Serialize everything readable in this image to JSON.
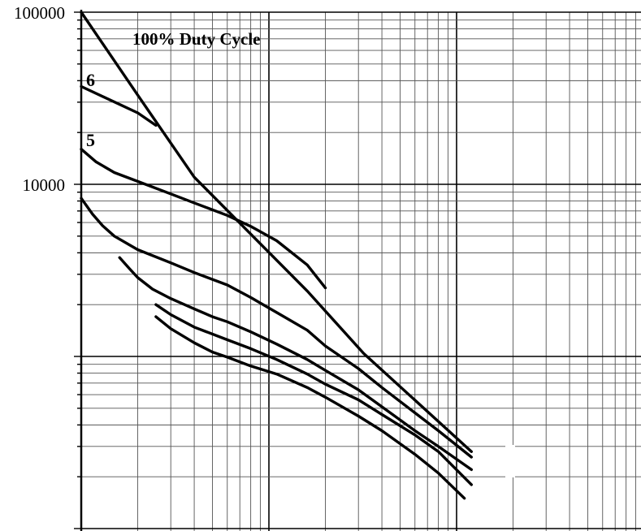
{
  "chart_data": {
    "type": "line",
    "title": "",
    "xlabel": "",
    "ylabel": "",
    "x_scale": "log",
    "y_scale": "log",
    "xlim": [
      1,
      1000
    ],
    "ylim": [
      100,
      100000
    ],
    "grid": true,
    "y_tick_labels": [
      {
        "value": 100000,
        "label": "100000"
      },
      {
        "value": 10000,
        "label": "10000"
      }
    ],
    "series_labels": [
      "6",
      "5"
    ],
    "annotations": [
      {
        "text": "100% Duty Cycle",
        "x": 2.8,
        "y": 80000
      }
    ],
    "line_color": "#000000",
    "series": [
      {
        "id": "duty-100",
        "points": [
          [
            1.0,
            100000
          ],
          [
            2.0,
            33000
          ],
          [
            4.0,
            11000
          ],
          [
            16.0,
            2400
          ],
          [
            32.0,
            1040
          ],
          [
            120.0,
            280
          ]
        ]
      },
      {
        "id": "curve-6",
        "points": [
          [
            1.0,
            37000
          ],
          [
            2.0,
            26000
          ],
          [
            2.5,
            22000
          ]
        ]
      },
      {
        "id": "curve-5",
        "points": [
          [
            1.0,
            16000
          ],
          [
            1.2,
            13500
          ],
          [
            1.5,
            11700
          ],
          [
            2.0,
            10400
          ],
          [
            3.0,
            8800
          ],
          [
            4.0,
            7800
          ],
          [
            6.0,
            6600
          ],
          [
            8.0,
            5700
          ],
          [
            11.0,
            4700
          ],
          [
            16.0,
            3400
          ],
          [
            20.0,
            2500
          ]
        ]
      },
      {
        "id": "curve-4",
        "points": [
          [
            1.0,
            8300
          ],
          [
            1.15,
            6700
          ],
          [
            1.3,
            5750
          ],
          [
            1.5,
            5000
          ],
          [
            2.0,
            4170
          ],
          [
            3.0,
            3500
          ],
          [
            4.0,
            3070
          ],
          [
            6.0,
            2600
          ],
          [
            8.0,
            2200
          ],
          [
            11.0,
            1800
          ],
          [
            16.0,
            1420
          ],
          [
            20.0,
            1150
          ],
          [
            30.0,
            850
          ],
          [
            40.0,
            660
          ],
          [
            60.0,
            470
          ],
          [
            80.0,
            370
          ],
          [
            120.0,
            260
          ]
        ]
      },
      {
        "id": "curve-3",
        "points": [
          [
            1.6,
            3750
          ],
          [
            1.8,
            3250
          ],
          [
            2.0,
            2870
          ],
          [
            2.4,
            2460
          ],
          [
            3.0,
            2170
          ],
          [
            4.0,
            1890
          ],
          [
            5.0,
            1700
          ],
          [
            6.0,
            1590
          ],
          [
            8.0,
            1390
          ],
          [
            11.0,
            1180
          ],
          [
            16.0,
            960
          ],
          [
            20.0,
            830
          ],
          [
            30.0,
            640
          ],
          [
            40.0,
            510
          ],
          [
            60.0,
            370
          ],
          [
            80.0,
            300
          ],
          [
            120.0,
            220
          ]
        ]
      },
      {
        "id": "curve-2",
        "points": [
          [
            2.5,
            2000
          ],
          [
            3.0,
            1750
          ],
          [
            4.0,
            1480
          ],
          [
            6.0,
            1250
          ],
          [
            8.0,
            1110
          ],
          [
            11.0,
            960
          ],
          [
            16.0,
            790
          ],
          [
            20.0,
            690
          ],
          [
            30.0,
            560
          ],
          [
            40.0,
            460
          ],
          [
            60.0,
            350
          ],
          [
            80.0,
            280
          ],
          [
            120.0,
            180
          ]
        ]
      },
      {
        "id": "curve-1",
        "points": [
          [
            2.5,
            1700
          ],
          [
            3.0,
            1450
          ],
          [
            4.0,
            1200
          ],
          [
            5.0,
            1060
          ],
          [
            6.0,
            990
          ],
          [
            8.0,
            880
          ],
          [
            11.0,
            790
          ],
          [
            16.0,
            660
          ],
          [
            20.0,
            580
          ],
          [
            30.0,
            450
          ],
          [
            40.0,
            370
          ],
          [
            60.0,
            270
          ],
          [
            80.0,
            210
          ],
          [
            110.0,
            150
          ]
        ]
      }
    ]
  }
}
